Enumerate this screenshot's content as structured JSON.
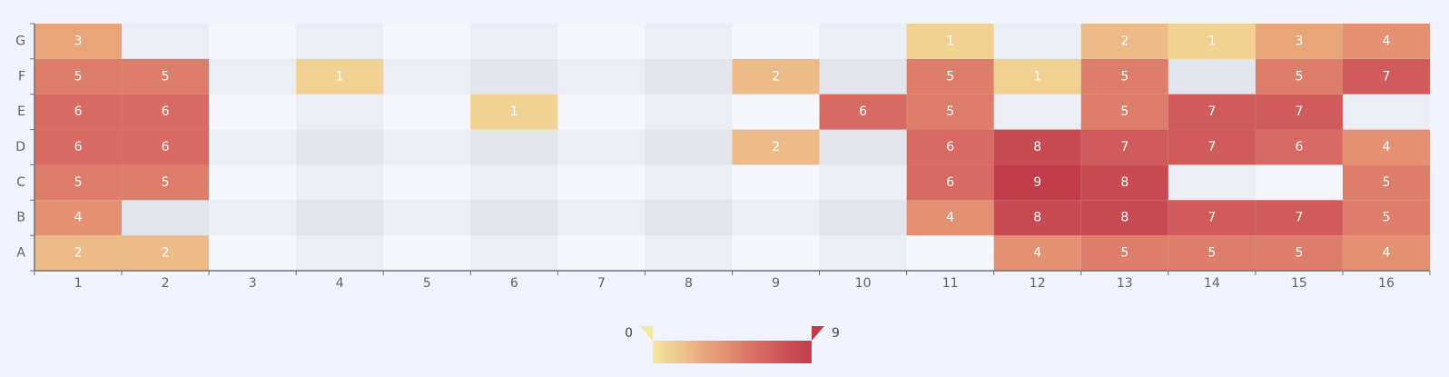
{
  "chart_data": {
    "type": "heatmap",
    "title": "",
    "xlabel": "",
    "ylabel": "",
    "x_categories": [
      "1",
      "2",
      "3",
      "4",
      "5",
      "6",
      "7",
      "8",
      "9",
      "10",
      "11",
      "12",
      "13",
      "14",
      "15",
      "16"
    ],
    "y_categories": [
      "A",
      "B",
      "C",
      "D",
      "E",
      "F",
      "G"
    ],
    "values": {
      "A": [
        2,
        2,
        null,
        null,
        null,
        null,
        null,
        null,
        null,
        null,
        null,
        4,
        5,
        5,
        5,
        4
      ],
      "B": [
        4,
        null,
        null,
        null,
        null,
        null,
        null,
        null,
        null,
        null,
        4,
        8,
        8,
        7,
        7,
        5
      ],
      "C": [
        5,
        5,
        null,
        null,
        null,
        null,
        null,
        null,
        null,
        null,
        6,
        9,
        8,
        null,
        null,
        5
      ],
      "D": [
        6,
        6,
        null,
        null,
        null,
        null,
        null,
        null,
        2,
        null,
        6,
        8,
        7,
        7,
        6,
        4
      ],
      "E": [
        6,
        6,
        null,
        null,
        null,
        1,
        null,
        null,
        null,
        6,
        5,
        null,
        5,
        7,
        7,
        null
      ],
      "F": [
        5,
        5,
        null,
        1,
        null,
        null,
        null,
        null,
        2,
        null,
        5,
        1,
        5,
        null,
        5,
        7
      ],
      "G": [
        3,
        null,
        null,
        null,
        null,
        null,
        null,
        null,
        null,
        null,
        1,
        null,
        2,
        1,
        3,
        4
      ]
    },
    "visual_map": {
      "min": 0,
      "max": 9,
      "min_label": "0",
      "max_label": "9",
      "colors": [
        "#f5e8a0",
        "#e8a57a",
        "#d86a63",
        "#c23b4a"
      ]
    },
    "colors": {
      "background": "#f1f3fe",
      "band_light": "#f6f7fd",
      "band_dark": "#e7e8ef",
      "axis": "#6e7079"
    },
    "grid": false,
    "legend_placement": "bottom-center"
  }
}
